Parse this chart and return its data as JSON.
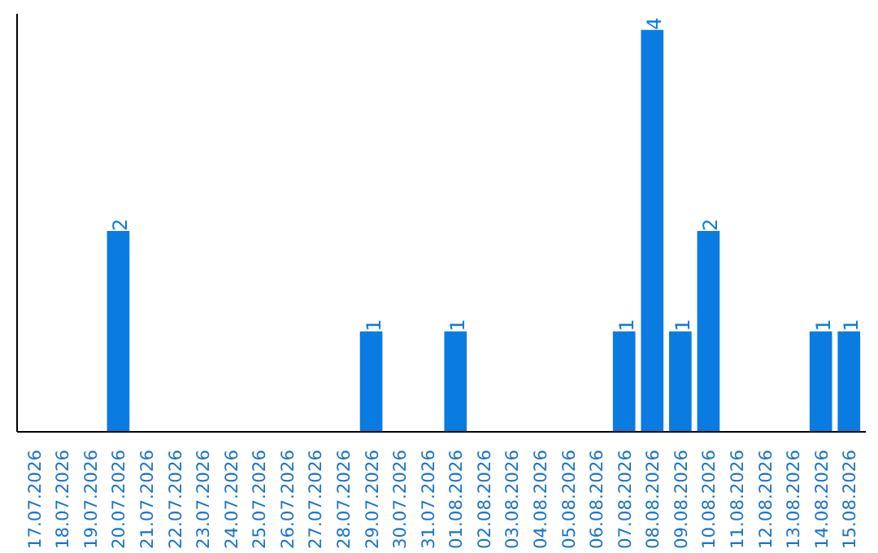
{
  "chart_data": {
    "type": "bar",
    "categories": [
      "17.07.2026",
      "18.07.2026",
      "19.07.2026",
      "20.07.2026",
      "21.07.2026",
      "22.07.2026",
      "23.07.2026",
      "24.07.2026",
      "25.07.2026",
      "26.07.2026",
      "27.07.2026",
      "28.07.2026",
      "29.07.2026",
      "30.07.2026",
      "31.07.2026",
      "01.08.2026",
      "02.08.2026",
      "03.08.2026",
      "04.08.2026",
      "05.08.2026",
      "06.08.2026",
      "07.08.2026",
      "08.08.2026",
      "09.08.2026",
      "10.08.2026",
      "11.08.2026",
      "12.08.2026",
      "13.08.2026",
      "14.08.2026",
      "15.08.2026"
    ],
    "values": [
      0,
      0,
      0,
      2,
      0,
      0,
      0,
      0,
      0,
      0,
      0,
      0,
      1,
      0,
      0,
      1,
      0,
      0,
      0,
      0,
      0,
      1,
      4,
      1,
      2,
      0,
      0,
      0,
      1,
      1
    ],
    "value_labels": [
      null,
      null,
      null,
      "2",
      null,
      null,
      null,
      null,
      null,
      null,
      null,
      null,
      "1",
      null,
      null,
      "1",
      null,
      null,
      null,
      null,
      null,
      "1",
      "4",
      "1",
      "2",
      null,
      null,
      null,
      "1",
      "1"
    ],
    "color": "#0a7be0",
    "grid": false,
    "tick_labels": "x"
  }
}
